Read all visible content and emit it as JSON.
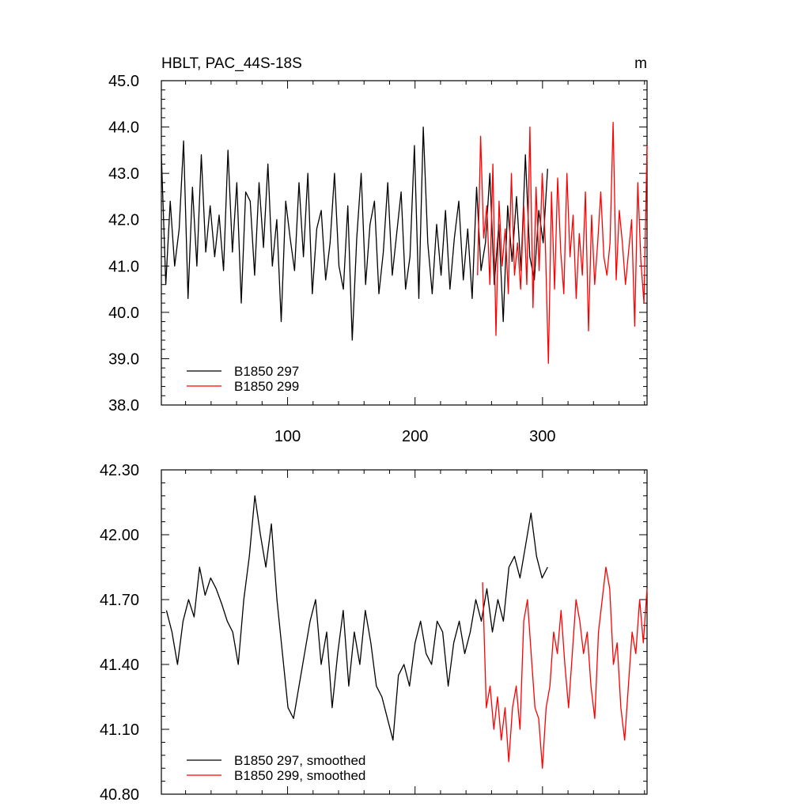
{
  "panels": {
    "top": {
      "title_left": "HBLT, PAC_44S-18S",
      "title_right": "m"
    }
  },
  "chart_data": [
    {
      "type": "line",
      "title": "HBLT, PAC_44S-18S",
      "units": "m",
      "xlim": [
        1,
        382
      ],
      "ylim": [
        38.0,
        45.0
      ],
      "x_ticks": [
        100,
        200,
        300
      ],
      "y_ticks": [
        38.0,
        39.0,
        40.0,
        41.0,
        42.0,
        43.0,
        44.0,
        45.0
      ],
      "y_tick_labels": [
        "38.0",
        "39.0",
        "40.0",
        "41.0",
        "42.0",
        "43.0",
        "44.0",
        "45.0"
      ],
      "grid": false,
      "legend_position": "bottom-left",
      "series": [
        {
          "name": "B1850 297",
          "color": "#000000",
          "x_start": 1,
          "x_step": 3,
          "values": [
            43.4,
            40.6,
            42.4,
            41.0,
            41.8,
            43.7,
            40.3,
            42.7,
            41.0,
            43.4,
            41.3,
            42.3,
            41.2,
            42.1,
            40.9,
            43.5,
            41.3,
            42.8,
            40.2,
            42.6,
            42.4,
            40.8,
            42.8,
            41.4,
            43.2,
            41.0,
            42.0,
            39.8,
            42.4,
            41.6,
            40.9,
            42.8,
            41.2,
            43.0,
            40.4,
            41.8,
            42.2,
            40.7,
            41.5,
            43.0,
            41.0,
            40.5,
            42.3,
            39.4,
            41.6,
            43.0,
            40.6,
            41.9,
            42.4,
            40.4,
            41.3,
            42.8,
            40.8,
            41.7,
            42.6,
            40.5,
            41.2,
            43.6,
            40.3,
            44.0,
            41.5,
            40.4,
            41.9,
            40.8,
            42.2,
            40.5,
            41.6,
            42.4,
            40.7,
            41.8,
            40.3,
            42.7,
            40.9,
            41.5,
            43.0,
            40.6,
            41.9,
            39.8,
            42.3,
            41.1,
            42.5,
            40.9,
            43.4,
            41.2,
            40.7,
            42.2,
            41.5,
            43.1
          ],
          "x_end": 304
        },
        {
          "name": "B1850 299",
          "color": "#ff0000",
          "x_start": 249,
          "x_step": 3,
          "values": [
            40.8,
            43.8,
            41.6,
            42.3,
            40.6,
            43.2,
            39.5,
            42.4,
            41.0,
            41.8,
            40.4,
            43.0,
            40.8,
            41.5,
            40.5,
            42.3,
            40.6,
            44.0,
            40.1,
            42.7,
            40.9,
            43.0,
            41.5,
            38.9,
            42.6,
            40.5,
            42.9,
            41.3,
            40.4,
            43.0,
            41.2,
            42.1,
            40.3,
            41.7,
            40.8,
            42.6,
            39.6,
            42.1,
            40.6,
            41.5,
            42.6,
            41.2,
            40.8,
            41.5,
            44.1,
            40.7,
            42.2,
            41.5,
            40.6,
            41.3,
            42.0,
            39.7,
            42.8,
            41.1,
            40.2,
            43.6
          ],
          "x_end": 382
        }
      ]
    },
    {
      "type": "line",
      "xlim": [
        1,
        382
      ],
      "ylim": [
        40.8,
        42.3
      ],
      "x_ticks": [
        100,
        200,
        300
      ],
      "y_ticks": [
        40.8,
        41.1,
        41.4,
        41.7,
        42.0,
        42.3
      ],
      "y_tick_labels": [
        "40.80",
        "41.10",
        "41.40",
        "41.70",
        "42.00",
        "42.30"
      ],
      "grid": false,
      "legend_position": "bottom-left",
      "series": [
        {
          "name": "B1850 297, smoothed",
          "color": "#000000",
          "x_start": 5,
          "x_step": 3,
          "values": [
            41.65,
            41.55,
            41.4,
            41.6,
            41.7,
            41.62,
            41.85,
            41.72,
            41.8,
            41.75,
            41.68,
            41.6,
            41.55,
            41.4,
            41.7,
            41.9,
            42.18,
            42.0,
            41.85,
            42.05,
            41.7,
            41.45,
            41.2,
            41.15,
            41.3,
            41.45,
            41.6,
            41.7,
            41.4,
            41.55,
            41.2,
            41.45,
            41.65,
            41.3,
            41.55,
            41.4,
            41.65,
            41.5,
            41.3,
            41.25,
            41.15,
            41.05,
            41.35,
            41.4,
            41.3,
            41.5,
            41.6,
            41.45,
            41.4,
            41.6,
            41.55,
            41.3,
            41.5,
            41.6,
            41.45,
            41.55,
            41.7,
            41.6,
            41.75,
            41.55,
            41.7,
            41.6,
            41.85,
            41.9,
            41.8,
            41.95,
            42.1,
            41.9,
            41.8,
            41.85
          ],
          "x_end": 304
        },
        {
          "name": "B1850 299, smoothed",
          "color": "#ff0000",
          "x_start": 253,
          "x_step": 3,
          "values": [
            41.78,
            41.2,
            41.3,
            41.1,
            41.25,
            41.05,
            41.2,
            40.95,
            41.2,
            41.3,
            41.1,
            41.6,
            41.7,
            41.45,
            41.2,
            41.15,
            40.92,
            41.2,
            41.3,
            41.55,
            41.45,
            41.65,
            41.4,
            41.2,
            41.45,
            41.7,
            41.6,
            41.45,
            41.55,
            41.3,
            41.15,
            41.55,
            41.7,
            41.85,
            41.75,
            41.4,
            41.5,
            41.2,
            41.05,
            41.3,
            41.55,
            41.45,
            41.7,
            41.5,
            41.75
          ],
          "x_end": 382
        }
      ]
    }
  ]
}
